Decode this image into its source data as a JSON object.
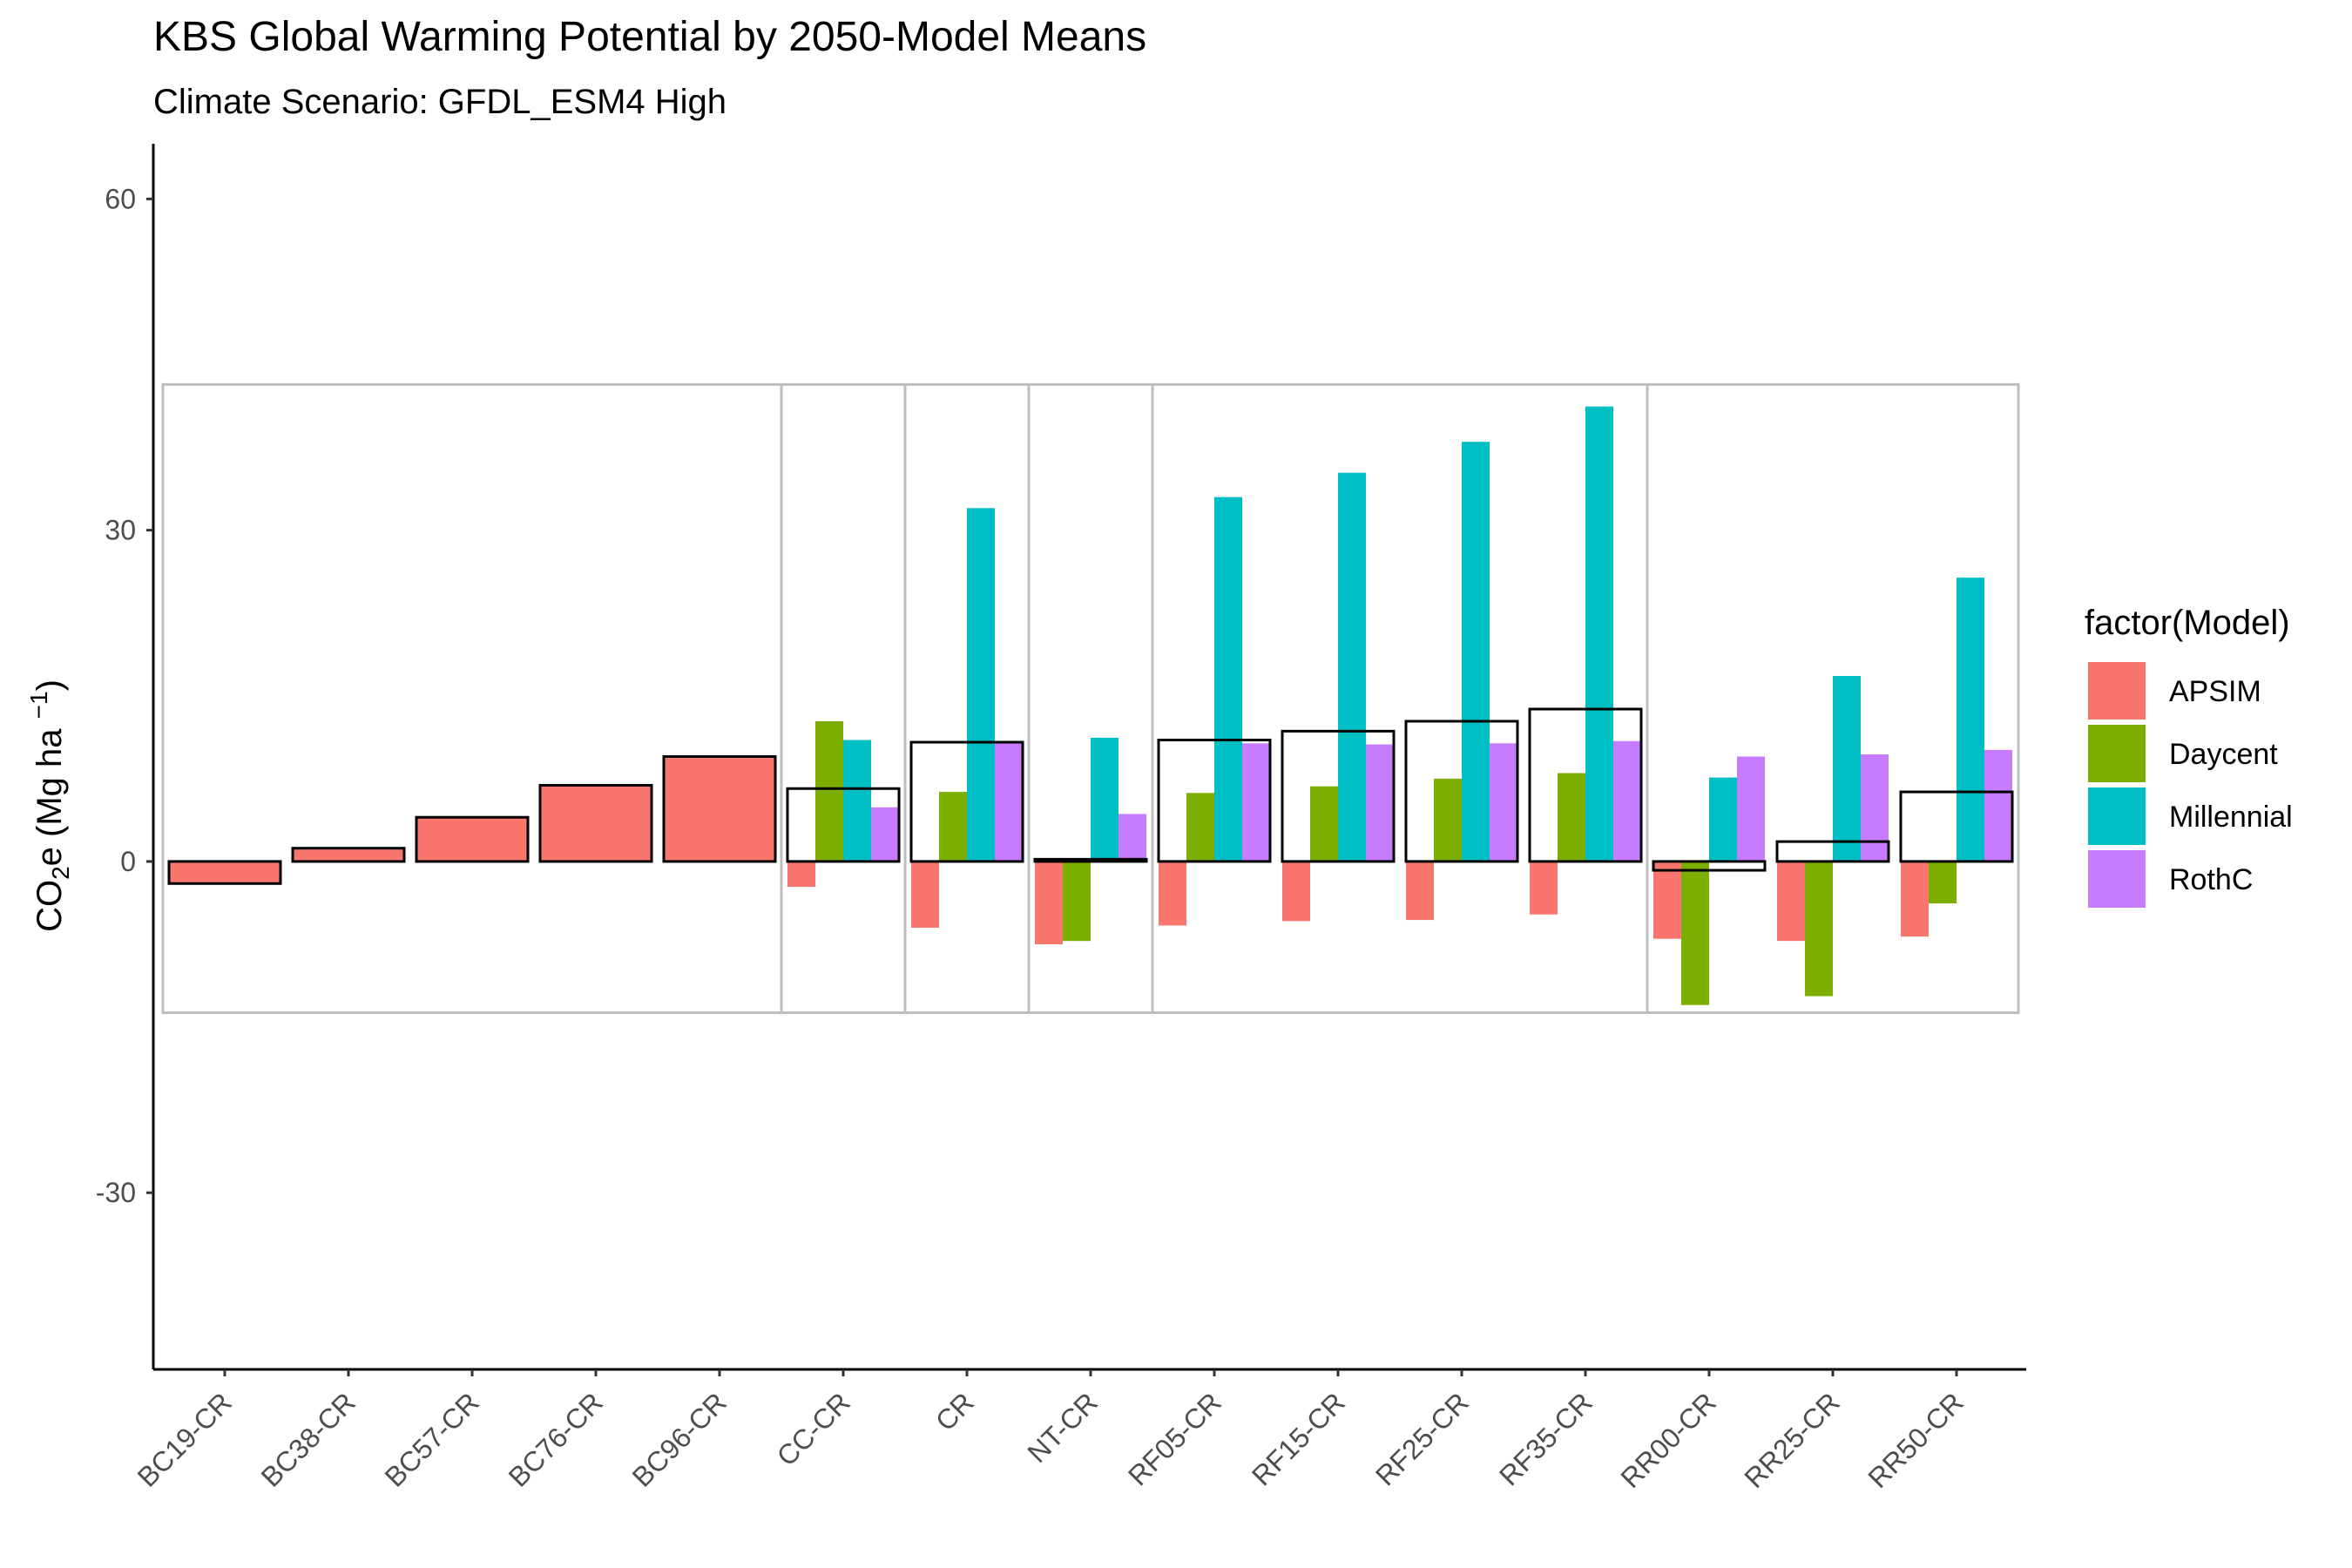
{
  "chart_data": {
    "type": "bar",
    "title": "KBS Global Warming Potential by 2050-Model Means",
    "subtitle": "Climate Scenario: GFDL_ESM4 High",
    "ylabel": {
      "main": "CO",
      "sub": "2",
      "mid": "e (Mg ha ",
      "sup": "−1",
      "end": ")"
    },
    "xlabel": "",
    "ylim": [
      -46,
      65
    ],
    "yticks": [
      60,
      30,
      0,
      -30
    ],
    "ytick_labels": [
      "60",
      "30",
      "0",
      "-30"
    ],
    "grid": false,
    "legend": {
      "title": "factor(Model)",
      "position": "right"
    },
    "categories": [
      "BC19-CR",
      "BC38-CR",
      "BC57-CR",
      "BC76-CR",
      "BC96-CR",
      "CC-CR",
      "CR",
      "NT-CR",
      "RF05-CR",
      "RF15-CR",
      "RF25-CR",
      "RF35-CR",
      "RR00-CR",
      "RR25-CR",
      "RR50-CR"
    ],
    "series": [
      {
        "name": "APSIM",
        "color": "#F8766D",
        "values": [
          -2,
          1.2,
          4,
          6.9,
          9.5,
          -2.3,
          -6,
          -7.5,
          -5.8,
          -5.4,
          -5.3,
          -4.8,
          -7,
          -7.2,
          -6.8
        ]
      },
      {
        "name": "Daycent",
        "color": "#7CAE00",
        "values": [
          null,
          null,
          null,
          null,
          null,
          12.7,
          6.3,
          -7.2,
          6.2,
          6.8,
          7.5,
          8,
          -13,
          -12.2,
          -3.8
        ]
      },
      {
        "name": "Millennial",
        "color": "#00BFC4",
        "values": [
          null,
          null,
          null,
          null,
          null,
          11,
          32,
          11.2,
          33,
          35.2,
          38,
          41.2,
          7.6,
          16.8,
          25.7
        ]
      },
      {
        "name": "RothC",
        "color": "#C77CFF",
        "values": [
          null,
          null,
          null,
          null,
          null,
          4.9,
          10.7,
          4.3,
          10.7,
          10.6,
          10.7,
          10.9,
          9.5,
          9.7,
          10.1
        ]
      }
    ],
    "model_means": [
      -2,
      1.2,
      4,
      6.9,
      9.5,
      6.6,
      10.8,
      0.2,
      11,
      11.8,
      12.7,
      13.8,
      -0.8,
      1.8,
      6.3
    ],
    "group_boxes": [
      {
        "from": "BC19-CR",
        "to": "BC96-CR"
      },
      {
        "from": "CC-CR",
        "to": "CC-CR"
      },
      {
        "from": "CR",
        "to": "CR"
      },
      {
        "from": "NT-CR",
        "to": "NT-CR"
      },
      {
        "from": "RF05-CR",
        "to": "RF35-CR"
      },
      {
        "from": "RR00-CR",
        "to": "RR50-CR"
      }
    ],
    "group_box_range": [
      -13.7,
      43.2
    ]
  }
}
